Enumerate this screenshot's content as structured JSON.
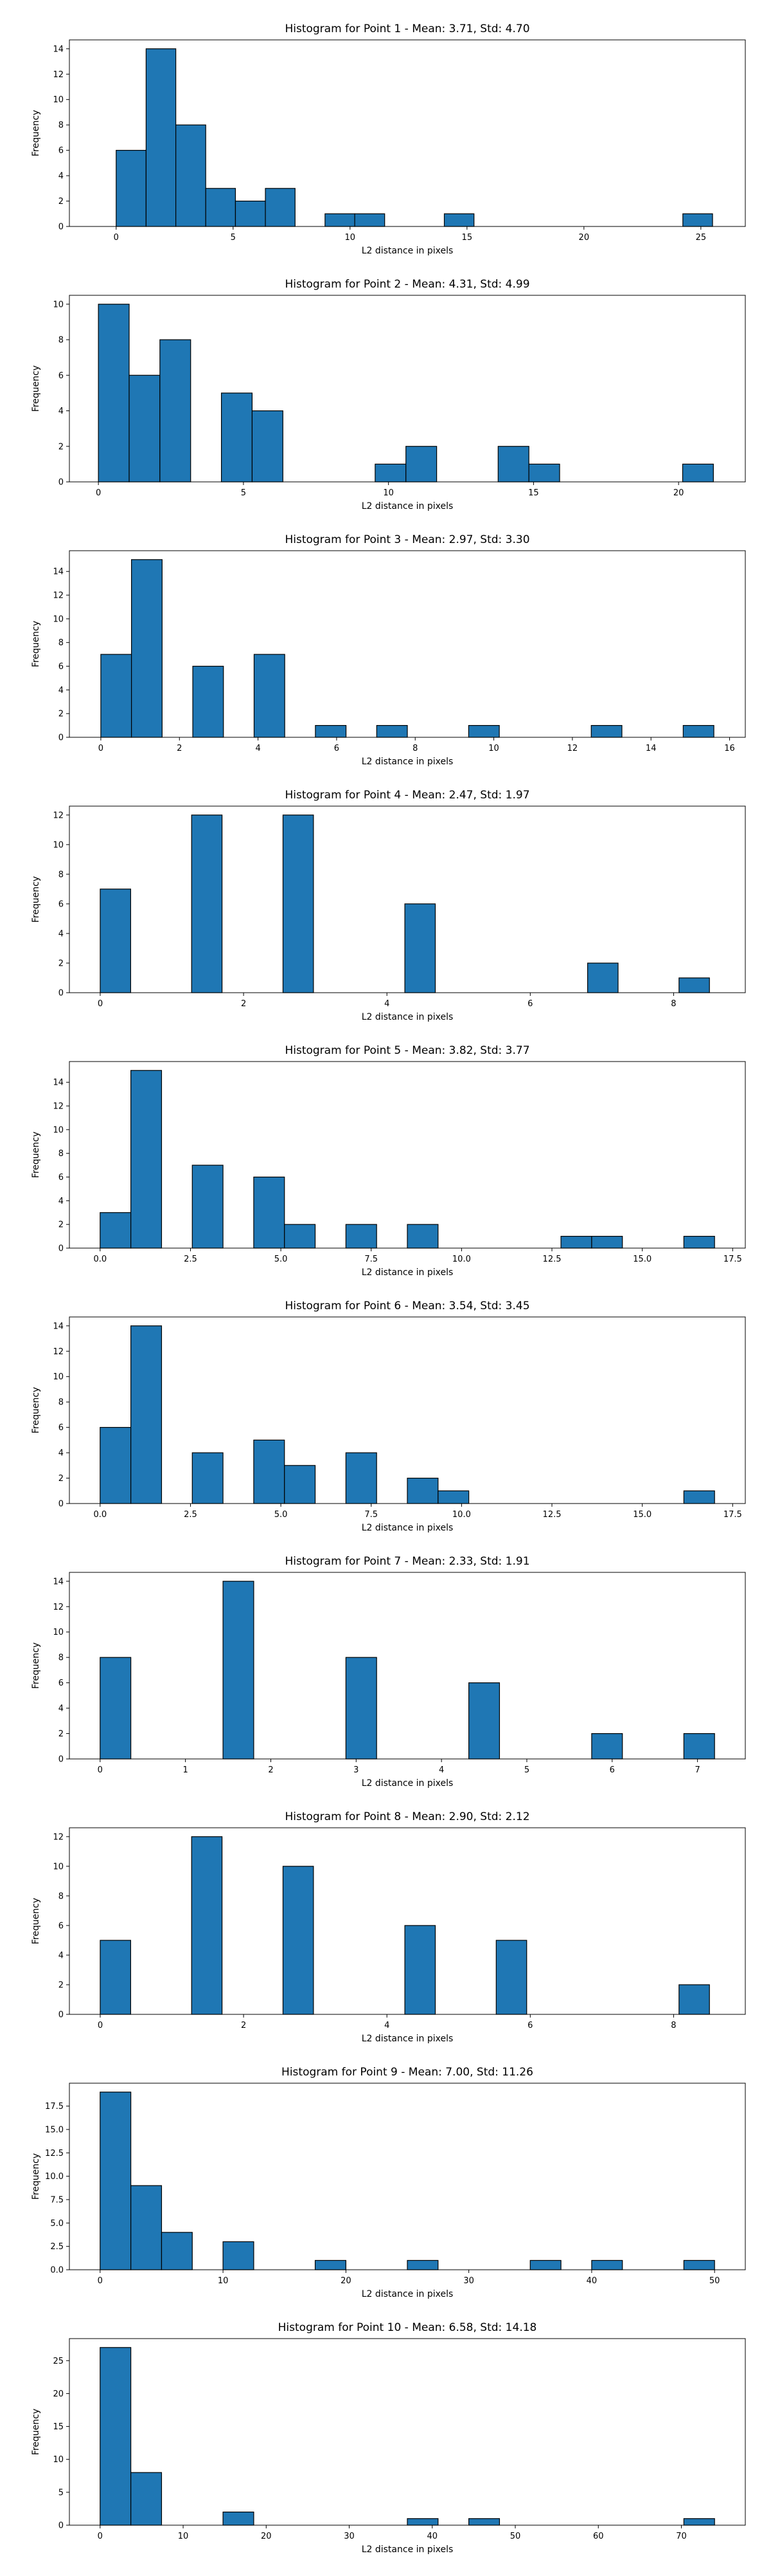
{
  "chart_data": [
    {
      "type": "bar",
      "title": "Histogram for Point 1 - Mean: 3.71, Std: 4.70",
      "xlabel": "L2 distance in pixels",
      "ylabel": "Frequency",
      "xlim": [
        -2.0,
        26.9
      ],
      "ylim": [
        0,
        14.7
      ],
      "xticks": [
        0,
        5,
        10,
        15,
        20,
        25
      ],
      "xticklabels": [
        "0",
        "5",
        "10",
        "15",
        "20",
        "25"
      ],
      "yticks": [
        0,
        2,
        4,
        6,
        8,
        10,
        12,
        14
      ],
      "yticklabels": [
        "0",
        "2",
        "4",
        "6",
        "8",
        "10",
        "12",
        "14"
      ],
      "bins": [
        {
          "x0": 0.0,
          "x1": 1.28,
          "value": 6
        },
        {
          "x0": 1.28,
          "x1": 2.55,
          "value": 14
        },
        {
          "x0": 2.55,
          "x1": 3.83,
          "value": 8
        },
        {
          "x0": 3.83,
          "x1": 5.1,
          "value": 3
        },
        {
          "x0": 5.1,
          "x1": 6.38,
          "value": 2
        },
        {
          "x0": 6.38,
          "x1": 7.65,
          "value": 3
        },
        {
          "x0": 8.93,
          "x1": 10.2,
          "value": 1
        },
        {
          "x0": 10.2,
          "x1": 11.48,
          "value": 1
        },
        {
          "x0": 14.03,
          "x1": 15.3,
          "value": 1
        },
        {
          "x0": 24.23,
          "x1": 25.5,
          "value": 1
        }
      ]
    },
    {
      "type": "bar",
      "title": "Histogram for Point 2 - Mean: 4.31, Std: 4.99",
      "xlabel": "L2 distance in pixels",
      "ylabel": "Frequency",
      "xlim": [
        -1.0,
        22.3
      ],
      "ylim": [
        0,
        10.5
      ],
      "xticks": [
        0,
        5,
        10,
        15,
        20
      ],
      "xticklabels": [
        "0",
        "5",
        "10",
        "15",
        "20"
      ],
      "yticks": [
        0,
        2,
        4,
        6,
        8,
        10
      ],
      "yticklabels": [
        "0",
        "2",
        "4",
        "6",
        "8",
        "10"
      ],
      "bins": [
        {
          "x0": 0.0,
          "x1": 1.06,
          "value": 10
        },
        {
          "x0": 1.06,
          "x1": 2.12,
          "value": 6
        },
        {
          "x0": 2.12,
          "x1": 3.18,
          "value": 8
        },
        {
          "x0": 4.24,
          "x1": 5.3,
          "value": 5
        },
        {
          "x0": 5.3,
          "x1": 6.36,
          "value": 4
        },
        {
          "x0": 9.54,
          "x1": 10.6,
          "value": 1
        },
        {
          "x0": 10.6,
          "x1": 11.66,
          "value": 2
        },
        {
          "x0": 13.78,
          "x1": 14.84,
          "value": 2
        },
        {
          "x0": 14.84,
          "x1": 15.9,
          "value": 1
        },
        {
          "x0": 20.14,
          "x1": 21.2,
          "value": 1
        }
      ]
    },
    {
      "type": "bar",
      "title": "Histogram for Point 3 - Mean: 2.97, Std: 3.30",
      "xlabel": "L2 distance in pixels",
      "ylabel": "Frequency",
      "xlim": [
        -0.8,
        16.4
      ],
      "ylim": [
        0,
        15.75
      ],
      "xticks": [
        0,
        2,
        4,
        6,
        8,
        10,
        12,
        14,
        16
      ],
      "xticklabels": [
        "0",
        "2",
        "4",
        "6",
        "8",
        "10",
        "12",
        "14",
        "16"
      ],
      "yticks": [
        0,
        2,
        4,
        6,
        8,
        10,
        12,
        14
      ],
      "yticklabels": [
        "0",
        "2",
        "4",
        "6",
        "8",
        "10",
        "12",
        "14"
      ],
      "bins": [
        {
          "x0": 0.0,
          "x1": 0.78,
          "value": 7
        },
        {
          "x0": 0.78,
          "x1": 1.56,
          "value": 15
        },
        {
          "x0": 2.34,
          "x1": 3.12,
          "value": 6
        },
        {
          "x0": 3.9,
          "x1": 4.68,
          "value": 7
        },
        {
          "x0": 5.46,
          "x1": 6.24,
          "value": 1
        },
        {
          "x0": 7.02,
          "x1": 7.8,
          "value": 1
        },
        {
          "x0": 9.36,
          "x1": 10.14,
          "value": 1
        },
        {
          "x0": 12.48,
          "x1": 13.26,
          "value": 1
        },
        {
          "x0": 14.82,
          "x1": 15.6,
          "value": 1
        }
      ]
    },
    {
      "type": "bar",
      "title": "Histogram for Point 4 - Mean: 2.47, Std: 1.97",
      "xlabel": "L2 distance in pixels",
      "ylabel": "Frequency",
      "xlim": [
        -0.43,
        9.0
      ],
      "ylim": [
        0,
        12.6
      ],
      "xticks": [
        0,
        2,
        4,
        6,
        8
      ],
      "xticklabels": [
        "0",
        "2",
        "4",
        "6",
        "8"
      ],
      "yticks": [
        0,
        2,
        4,
        6,
        8,
        10,
        12
      ],
      "yticklabels": [
        "0",
        "2",
        "4",
        "6",
        "8",
        "10",
        "12"
      ],
      "bins": [
        {
          "x0": 0.0,
          "x1": 0.425,
          "value": 7
        },
        {
          "x0": 1.275,
          "x1": 1.7,
          "value": 12
        },
        {
          "x0": 2.55,
          "x1": 2.975,
          "value": 12
        },
        {
          "x0": 4.25,
          "x1": 4.675,
          "value": 6
        },
        {
          "x0": 6.8,
          "x1": 7.225,
          "value": 2
        },
        {
          "x0": 8.075,
          "x1": 8.5,
          "value": 1
        }
      ]
    },
    {
      "type": "bar",
      "title": "Histogram for Point 5 - Mean: 3.82, Std: 3.77",
      "xlabel": "L2 distance in pixels",
      "ylabel": "Frequency",
      "xlim": [
        -0.85,
        17.85
      ],
      "ylim": [
        0,
        15.75
      ],
      "xticks": [
        0,
        2.5,
        5,
        7.5,
        10,
        12.5,
        15,
        17.5
      ],
      "xticklabels": [
        "0.0",
        "2.5",
        "5.0",
        "7.5",
        "10.0",
        "12.5",
        "15.0",
        "17.5"
      ],
      "yticks": [
        0,
        2,
        4,
        6,
        8,
        10,
        12,
        14
      ],
      "yticklabels": [
        "0",
        "2",
        "4",
        "6",
        "8",
        "10",
        "12",
        "14"
      ],
      "bins": [
        {
          "x0": 0.0,
          "x1": 0.85,
          "value": 3
        },
        {
          "x0": 0.85,
          "x1": 1.7,
          "value": 15
        },
        {
          "x0": 2.55,
          "x1": 3.4,
          "value": 7
        },
        {
          "x0": 4.25,
          "x1": 5.1,
          "value": 6
        },
        {
          "x0": 5.1,
          "x1": 5.95,
          "value": 2
        },
        {
          "x0": 6.8,
          "x1": 7.65,
          "value": 2
        },
        {
          "x0": 8.5,
          "x1": 9.35,
          "value": 2
        },
        {
          "x0": 12.75,
          "x1": 13.6,
          "value": 1
        },
        {
          "x0": 13.6,
          "x1": 14.45,
          "value": 1
        },
        {
          "x0": 16.15,
          "x1": 17.0,
          "value": 1
        }
      ]
    },
    {
      "type": "bar",
      "title": "Histogram for Point 6 - Mean: 3.54, Std: 3.45",
      "xlabel": "L2 distance in pixels",
      "ylabel": "Frequency",
      "xlim": [
        -0.85,
        17.85
      ],
      "ylim": [
        0,
        14.7
      ],
      "xticks": [
        0,
        2.5,
        5,
        7.5,
        10,
        12.5,
        15,
        17.5
      ],
      "xticklabels": [
        "0.0",
        "2.5",
        "5.0",
        "7.5",
        "10.0",
        "12.5",
        "15.0",
        "17.5"
      ],
      "yticks": [
        0,
        2,
        4,
        6,
        8,
        10,
        12,
        14
      ],
      "yticklabels": [
        "0",
        "2",
        "4",
        "6",
        "8",
        "10",
        "12",
        "14"
      ],
      "bins": [
        {
          "x0": 0.0,
          "x1": 0.85,
          "value": 6
        },
        {
          "x0": 0.85,
          "x1": 1.7,
          "value": 14
        },
        {
          "x0": 2.55,
          "x1": 3.4,
          "value": 4
        },
        {
          "x0": 4.25,
          "x1": 5.1,
          "value": 5
        },
        {
          "x0": 5.1,
          "x1": 5.95,
          "value": 3
        },
        {
          "x0": 6.8,
          "x1": 7.65,
          "value": 4
        },
        {
          "x0": 8.5,
          "x1": 9.35,
          "value": 2
        },
        {
          "x0": 9.35,
          "x1": 10.2,
          "value": 1
        },
        {
          "x0": 16.15,
          "x1": 17.0,
          "value": 1
        }
      ]
    },
    {
      "type": "bar",
      "title": "Histogram for Point 7 - Mean: 2.33, Std: 1.91",
      "xlabel": "L2 distance in pixels",
      "ylabel": "Frequency",
      "xlim": [
        -0.36,
        7.56
      ],
      "ylim": [
        0,
        14.7
      ],
      "xticks": [
        0,
        1,
        2,
        3,
        4,
        5,
        6,
        7
      ],
      "xticklabels": [
        "0",
        "1",
        "2",
        "3",
        "4",
        "5",
        "6",
        "7"
      ],
      "yticks": [
        0,
        2,
        4,
        6,
        8,
        10,
        12,
        14
      ],
      "yticklabels": [
        "0",
        "2",
        "4",
        "6",
        "8",
        "10",
        "12",
        "14"
      ],
      "bins": [
        {
          "x0": 0.0,
          "x1": 0.36,
          "value": 8
        },
        {
          "x0": 1.44,
          "x1": 1.8,
          "value": 14
        },
        {
          "x0": 2.88,
          "x1": 3.24,
          "value": 8
        },
        {
          "x0": 4.32,
          "x1": 4.68,
          "value": 6
        },
        {
          "x0": 5.76,
          "x1": 6.12,
          "value": 2
        },
        {
          "x0": 6.84,
          "x1": 7.2,
          "value": 2
        }
      ]
    },
    {
      "type": "bar",
      "title": "Histogram for Point 8 - Mean: 2.90, Std: 2.12",
      "xlabel": "L2 distance in pixels",
      "ylabel": "Frequency",
      "xlim": [
        -0.43,
        9.0
      ],
      "ylim": [
        0,
        12.6
      ],
      "xticks": [
        0,
        2,
        4,
        6,
        8
      ],
      "xticklabels": [
        "0",
        "2",
        "4",
        "6",
        "8"
      ],
      "yticks": [
        0,
        2,
        4,
        6,
        8,
        10,
        12
      ],
      "yticklabels": [
        "0",
        "2",
        "4",
        "6",
        "8",
        "10",
        "12"
      ],
      "bins": [
        {
          "x0": 0.0,
          "x1": 0.425,
          "value": 5
        },
        {
          "x0": 1.275,
          "x1": 1.7,
          "value": 12
        },
        {
          "x0": 2.55,
          "x1": 2.975,
          "value": 10
        },
        {
          "x0": 4.25,
          "x1": 4.675,
          "value": 6
        },
        {
          "x0": 5.525,
          "x1": 5.95,
          "value": 5
        },
        {
          "x0": 8.075,
          "x1": 8.5,
          "value": 2
        }
      ]
    },
    {
      "type": "bar",
      "title": "Histogram for Point 9 - Mean: 7.00, Std: 11.26",
      "xlabel": "L2 distance in pixels",
      "ylabel": "Frequency",
      "xlim": [
        -2.5,
        52.5
      ],
      "ylim": [
        0,
        19.95
      ],
      "xticks": [
        0,
        10,
        20,
        30,
        40,
        50
      ],
      "xticklabels": [
        "0",
        "10",
        "20",
        "30",
        "40",
        "50"
      ],
      "yticks": [
        0,
        2.5,
        5,
        7.5,
        10,
        12.5,
        15,
        17.5
      ],
      "yticklabels": [
        "0.0",
        "2.5",
        "5.0",
        "7.5",
        "10.0",
        "12.5",
        "15.0",
        "17.5"
      ],
      "bins": [
        {
          "x0": 0.0,
          "x1": 2.5,
          "value": 19
        },
        {
          "x0": 2.5,
          "x1": 5.0,
          "value": 9
        },
        {
          "x0": 5.0,
          "x1": 7.5,
          "value": 4
        },
        {
          "x0": 10.0,
          "x1": 12.5,
          "value": 3
        },
        {
          "x0": 17.5,
          "x1": 20.0,
          "value": 1
        },
        {
          "x0": 25.0,
          "x1": 27.5,
          "value": 1
        },
        {
          "x0": 35.0,
          "x1": 37.5,
          "value": 1
        },
        {
          "x0": 40.0,
          "x1": 42.5,
          "value": 1
        },
        {
          "x0": 47.5,
          "x1": 50.0,
          "value": 1
        }
      ]
    },
    {
      "type": "bar",
      "title": "Histogram for Point 10 - Mean: 6.58, Std: 14.18",
      "xlabel": "L2 distance in pixels",
      "ylabel": "Frequency",
      "xlim": [
        -3.7,
        77.7
      ],
      "ylim": [
        0,
        28.35
      ],
      "xticks": [
        0,
        10,
        20,
        30,
        40,
        50,
        60,
        70
      ],
      "xticklabels": [
        "0",
        "10",
        "20",
        "30",
        "40",
        "50",
        "60",
        "70"
      ],
      "yticks": [
        0,
        5,
        10,
        15,
        20,
        25
      ],
      "yticklabels": [
        "0",
        "5",
        "10",
        "15",
        "20",
        "25"
      ],
      "bins": [
        {
          "x0": 0.0,
          "x1": 3.7,
          "value": 27
        },
        {
          "x0": 3.7,
          "x1": 7.4,
          "value": 8
        },
        {
          "x0": 14.8,
          "x1": 18.5,
          "value": 2
        },
        {
          "x0": 37.0,
          "x1": 40.7,
          "value": 1
        },
        {
          "x0": 44.4,
          "x1": 48.1,
          "value": 1
        },
        {
          "x0": 70.3,
          "x1": 74.0,
          "value": 1
        }
      ]
    }
  ],
  "style": {
    "bar_color": "#1f77b4",
    "edge_color": "#000000"
  }
}
